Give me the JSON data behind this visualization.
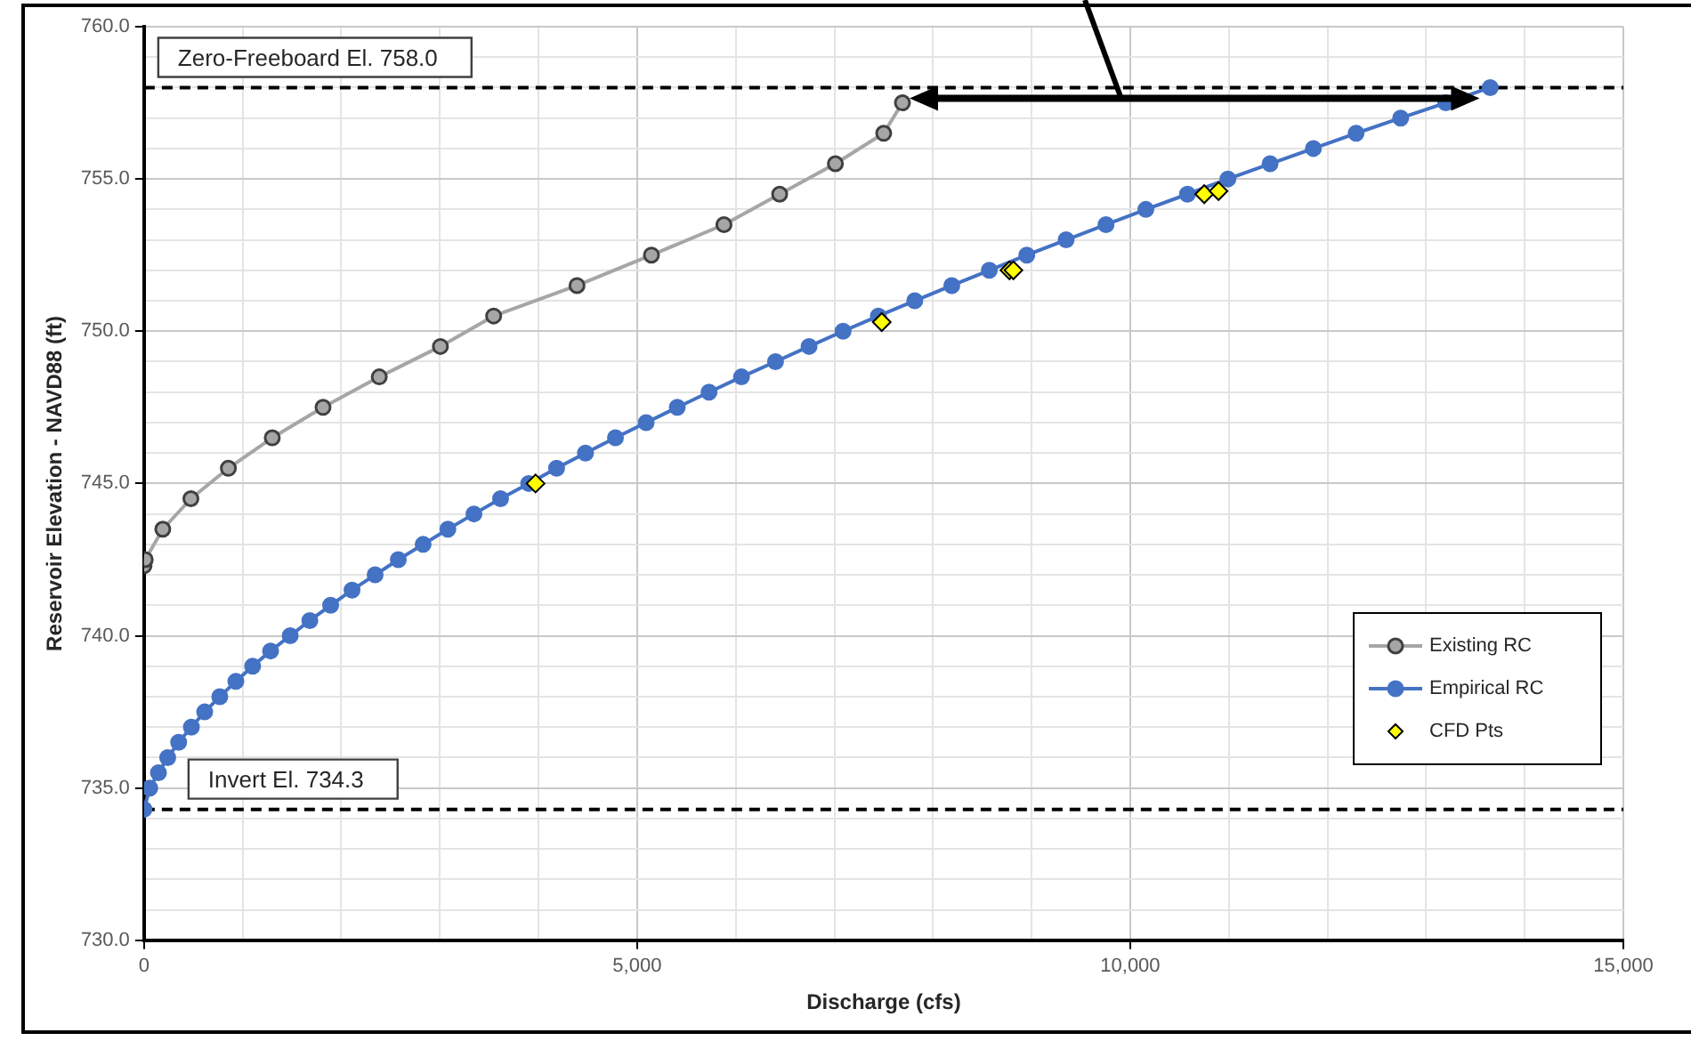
{
  "chart_data": {
    "type": "line",
    "xlabel": "Discharge (cfs)",
    "ylabel": "Reservoir Elevation - NAVD88 (ft)",
    "xlim": [
      0,
      15000
    ],
    "ylim": [
      730,
      760
    ],
    "xticks": [
      0,
      {
        "value": 1000,
        "label": null
      },
      {
        "value": 2000,
        "label": null
      },
      {
        "value": 3000,
        "label": null
      },
      {
        "value": 4000,
        "label": null
      },
      {
        "value": 5000,
        "label": "5,000"
      },
      {
        "value": 6000,
        "label": null
      },
      {
        "value": 7000,
        "label": null
      },
      {
        "value": 8000,
        "label": null
      },
      {
        "value": 9000,
        "label": null
      },
      {
        "value": 10000,
        "label": "10,000"
      },
      {
        "value": 11000,
        "label": null
      },
      {
        "value": 12000,
        "label": null
      },
      {
        "value": 13000,
        "label": null
      },
      {
        "value": 14000,
        "label": null
      },
      {
        "value": 15000,
        "label": "15,000"
      }
    ],
    "yticks": [
      {
        "value": 730,
        "label": "730.0"
      },
      {
        "value": 731,
        "label": null
      },
      {
        "value": 732,
        "label": null
      },
      {
        "value": 733,
        "label": null
      },
      {
        "value": 734,
        "label": null
      },
      {
        "value": 735,
        "label": "735.0"
      },
      {
        "value": 736,
        "label": null
      },
      {
        "value": 737,
        "label": null
      },
      {
        "value": 738,
        "label": null
      },
      {
        "value": 739,
        "label": null
      },
      {
        "value": 740,
        "label": "740.0"
      },
      {
        "value": 741,
        "label": null
      },
      {
        "value": 742,
        "label": null
      },
      {
        "value": 743,
        "label": null
      },
      {
        "value": 744,
        "label": null
      },
      {
        "value": 745,
        "label": "745.0"
      },
      {
        "value": 746,
        "label": null
      },
      {
        "value": 747,
        "label": null
      },
      {
        "value": 748,
        "label": null
      },
      {
        "value": 749,
        "label": null
      },
      {
        "value": 750,
        "label": "750.0"
      },
      {
        "value": 751,
        "label": null
      },
      {
        "value": 752,
        "label": null
      },
      {
        "value": 753,
        "label": null
      },
      {
        "value": 754,
        "label": null
      },
      {
        "value": 755,
        "label": "755.0"
      },
      {
        "value": 756,
        "label": null
      },
      {
        "value": 757,
        "label": null
      },
      {
        "value": 758,
        "label": null
      },
      {
        "value": 759,
        "label": null
      },
      {
        "value": 760,
        "label": "760.0"
      }
    ],
    "grid": true,
    "legend": "right",
    "marker": "circle",
    "line_style": "solid",
    "ref_lines": [
      {
        "axis": "y",
        "value": 758.0,
        "label": "Zero-Freeboard El. 758.0",
        "color": "#000000",
        "line_style": "dashed"
      },
      {
        "axis": "y",
        "value": 734.3,
        "label": "Invert El. 734.3",
        "color": "#000000",
        "line_style": "dashed"
      }
    ],
    "series": [
      {
        "name": "Existing RC",
        "type": "line",
        "color": "#a6a6a6",
        "x": [
          0,
          12,
          190,
          475,
          855,
          1300,
          1815,
          2385,
          3005,
          3545,
          4390,
          5145,
          5880,
          6445,
          7010,
          7500,
          7690
        ],
        "values": [
          742.3,
          742.5,
          743.5,
          744.5,
          745.5,
          746.5,
          747.5,
          748.5,
          749.5,
          750.5,
          751.5,
          752.5,
          753.5,
          754.5,
          755.5,
          756.5,
          757.5
        ]
      },
      {
        "name": "Empirical RC",
        "type": "line",
        "color": "#4472c4",
        "x": [
          0,
          58,
          146,
          240,
          351,
          480,
          615,
          768,
          931,
          1101,
          1283,
          1482,
          1681,
          1892,
          2109,
          2343,
          2578,
          2830,
          3081,
          3345,
          3615,
          3900,
          4183,
          4476,
          4780,
          5091,
          5407,
          5729,
          6058,
          6403,
          6743,
          7088,
          7446,
          7815,
          8190,
          8571,
          8951,
          9350,
          9754,
          10158,
          10580,
          10990,
          11418,
          11857,
          12290,
          12742,
          13199,
          13650
        ],
        "values": [
          734.3,
          735.0,
          735.5,
          736.0,
          736.5,
          737.0,
          737.5,
          738.0,
          738.5,
          739.0,
          739.5,
          740.0,
          740.5,
          741.0,
          741.5,
          742.0,
          742.5,
          743.0,
          743.5,
          744.0,
          744.5,
          745.0,
          745.5,
          746.0,
          746.5,
          747.0,
          747.5,
          748.0,
          748.5,
          749.0,
          749.5,
          750.0,
          750.5,
          751.0,
          751.5,
          752.0,
          752.5,
          753.0,
          753.5,
          754.0,
          754.5,
          755.0,
          755.5,
          756.0,
          756.5,
          757.0,
          757.5,
          758.0
        ]
      },
      {
        "name": "CFD Pts",
        "type": "scatter",
        "color": "#ffff00",
        "marker": "diamond",
        "x": [
          3970,
          7480,
          8775,
          8815,
          10750,
          10895
        ],
        "values": [
          745.0,
          750.3,
          752.0,
          752.0,
          754.5,
          754.6
        ]
      }
    ]
  }
}
